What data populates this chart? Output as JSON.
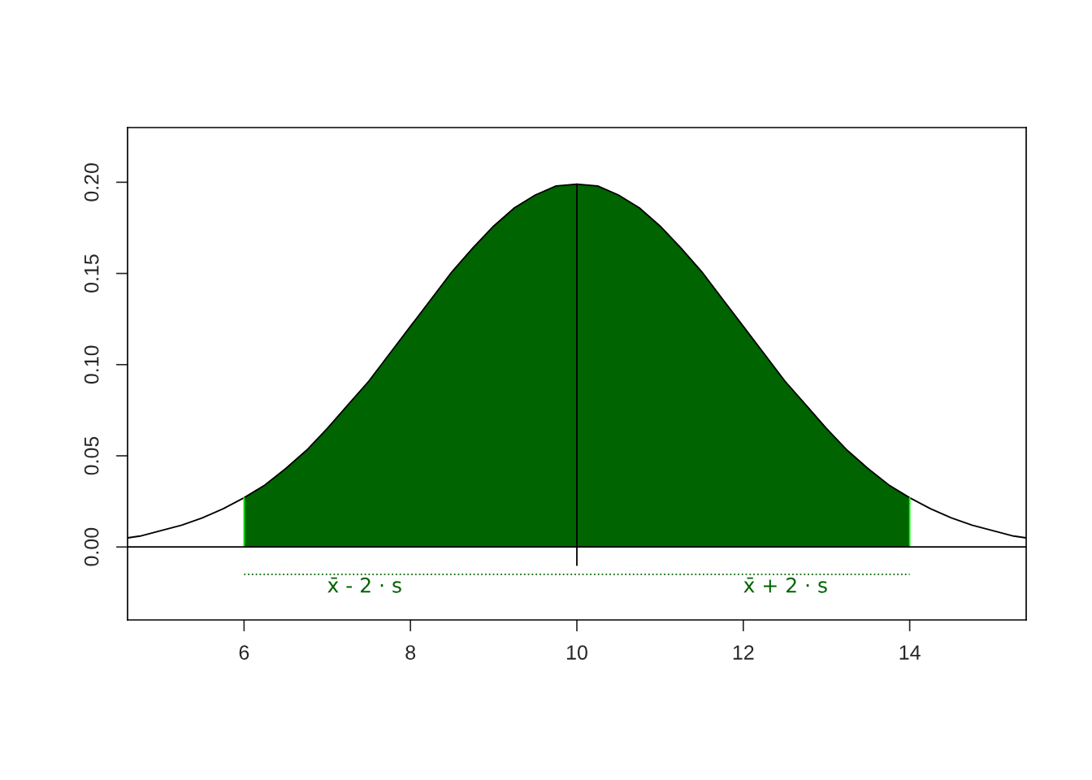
{
  "chart_data": {
    "type": "area",
    "series": [
      {
        "color": "#006400",
        "x": [
          6,
          6.25,
          6.5,
          6.75,
          7,
          7.25,
          7.5,
          7.75,
          8,
          8.25,
          8.5,
          8.75,
          9,
          9.25,
          9.5,
          9.75,
          10,
          10.25,
          10.5,
          10.75,
          11,
          11.25,
          11.5,
          11.75,
          12,
          12.25,
          12.5,
          12.75,
          13,
          13.25,
          13.5,
          13.75,
          14
        ],
        "values": [
          0.027,
          0.034,
          0.043,
          0.053,
          0.065,
          0.078,
          0.091,
          0.106,
          0.121,
          0.136,
          0.151,
          0.164,
          0.176,
          0.186,
          0.193,
          0.198,
          0.199,
          0.198,
          0.193,
          0.186,
          0.176,
          0.164,
          0.151,
          0.136,
          0.121,
          0.106,
          0.091,
          0.078,
          0.065,
          0.053,
          0.043,
          0.034,
          0.027
        ]
      },
      {
        "type": "line",
        "color": "#000000",
        "line_style": "solid",
        "x": [
          4.6,
          4.75,
          5,
          5.25,
          5.5,
          5.75,
          6,
          6.25,
          6.5,
          6.75,
          7,
          7.25,
          7.5,
          7.75,
          8,
          8.25,
          8.5,
          8.75,
          9,
          9.25,
          9.5,
          9.75,
          10,
          10.25,
          10.5,
          10.75,
          11,
          11.25,
          11.5,
          11.75,
          12,
          12.25,
          12.5,
          12.75,
          13,
          13.25,
          13.5,
          13.75,
          14,
          14.25,
          14.5,
          14.75,
          15,
          15.25,
          15.4
        ],
        "values": [
          0.005,
          0.006,
          0.009,
          0.012,
          0.016,
          0.021,
          0.027,
          0.034,
          0.043,
          0.053,
          0.065,
          0.078,
          0.091,
          0.106,
          0.121,
          0.136,
          0.151,
          0.164,
          0.176,
          0.186,
          0.193,
          0.198,
          0.199,
          0.198,
          0.193,
          0.186,
          0.176,
          0.164,
          0.151,
          0.136,
          0.121,
          0.106,
          0.091,
          0.078,
          0.065,
          0.053,
          0.043,
          0.034,
          0.027,
          0.021,
          0.016,
          0.012,
          0.009,
          0.006,
          0.005
        ]
      },
      {
        "type": "line",
        "color": "#00ff00",
        "line_style": "solid",
        "x": [
          6,
          6
        ],
        "values": [
          0,
          0.027
        ]
      },
      {
        "type": "line",
        "color": "#00ff00",
        "line_style": "solid",
        "x": [
          14,
          14
        ],
        "values": [
          0,
          0.027
        ]
      },
      {
        "type": "line",
        "color": "#000000",
        "line_style": "solid",
        "x": [
          10,
          10
        ],
        "values": [
          -0.01,
          0.199
        ]
      },
      {
        "type": "line",
        "color": "#006400",
        "line_style": "dotted",
        "x": [
          6,
          14
        ],
        "values": [
          -0.015,
          -0.015
        ]
      }
    ],
    "ref_lines": [
      {
        "axis": "y",
        "value": 0,
        "color": "#000000"
      }
    ],
    "annotations": [
      "x̄ - 2 · s",
      "x̄ + 2 · s"
    ],
    "xlim": [
      4.6,
      15.4
    ],
    "ylim": [
      -0.04,
      0.23
    ],
    "xticks": [
      6,
      8,
      10,
      12,
      14
    ],
    "yticks": [
      {
        "value": 0,
        "label": "0.00"
      },
      {
        "value": 0.05,
        "label": "0.05"
      },
      {
        "value": 0.1,
        "label": "0.10"
      },
      {
        "value": 0.15,
        "label": "0.15"
      },
      {
        "value": 0.2,
        "label": "0.20"
      }
    ],
    "grid": false,
    "legend": false
  }
}
